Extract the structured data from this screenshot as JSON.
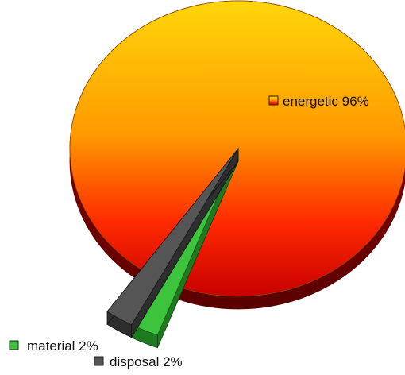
{
  "chart_data": {
    "type": "pie",
    "style": "3d-exploded",
    "title": "",
    "series": [
      {
        "categories": [
          "energetic",
          "material",
          "disposal"
        ],
        "values": [
          96,
          2,
          2
        ],
        "labels": [
          "energetic 96%",
          "material 2%",
          "disposal 2%"
        ],
        "colors": [
          "#f2b400",
          "#3cc43c",
          "#555555"
        ]
      }
    ],
    "gradient": [
      "#ffd60a",
      "#ff1a00",
      "#a00000"
    ],
    "legend": "inline"
  }
}
